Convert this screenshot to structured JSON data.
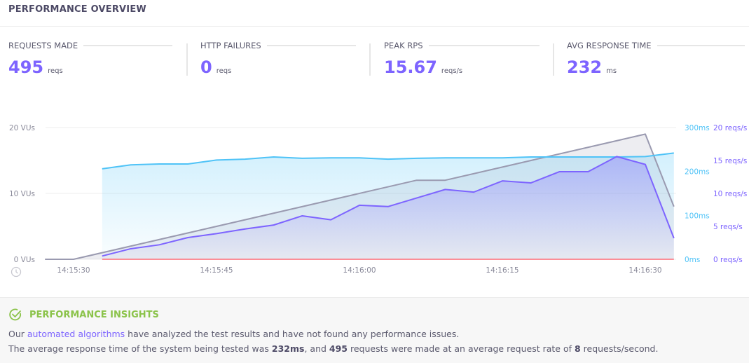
{
  "header": {
    "title": "PERFORMANCE OVERVIEW"
  },
  "stats": [
    {
      "label": "REQUESTS MADE",
      "value": "495",
      "unit": "reqs"
    },
    {
      "label": "HTTP FAILURES",
      "value": "0",
      "unit": "reqs"
    },
    {
      "label": "PEAK RPS",
      "value": "15.67",
      "unit": "reqs/s"
    },
    {
      "label": "AVG RESPONSE TIME",
      "value": "232",
      "unit": "ms"
    }
  ],
  "colors": {
    "vus": "#9a9ab0",
    "response_time": "#4fc3f7",
    "rps": "#7d64ff",
    "failures": "#ff4d5a",
    "accent": "#7d64ff",
    "insight": "#8bc34a"
  },
  "chart_data": {
    "type": "line",
    "x_ticks": [
      "14:15:30",
      "14:15:45",
      "14:16:00",
      "14:16:15",
      "14:16:30"
    ],
    "y_left": {
      "ticks": [
        "0 VUs",
        "10 VUs",
        "20 VUs"
      ],
      "range": [
        0,
        20
      ]
    },
    "y_right_ms": {
      "ticks": [
        "0ms",
        "100ms",
        "200ms",
        "300ms"
      ],
      "range": [
        0,
        300
      ]
    },
    "y_right_rps": {
      "ticks": [
        "0 reqs/s",
        "5 reqs/s",
        "10 reqs/s",
        "15 reqs/s",
        "20 reqs/s"
      ],
      "range": [
        0,
        20
      ]
    },
    "grid": true,
    "series": [
      {
        "key": "vus",
        "axis": "left",
        "x": [
          "14:15:27",
          "14:15:30",
          "14:16:06",
          "14:16:09",
          "14:16:30",
          "14:16:33"
        ],
        "values": [
          0,
          0,
          12,
          12,
          19,
          8
        ]
      },
      {
        "key": "response_time",
        "axis": "ms",
        "x": [
          "14:15:33",
          "14:15:36",
          "14:15:39",
          "14:15:42",
          "14:15:45",
          "14:15:48",
          "14:15:51",
          "14:15:54",
          "14:15:57",
          "14:16:00",
          "14:16:03",
          "14:16:06",
          "14:16:09",
          "14:16:12",
          "14:16:15",
          "14:16:18",
          "14:16:21",
          "14:16:24",
          "14:16:27",
          "14:16:30",
          "14:16:33"
        ],
        "values": [
          206,
          215,
          217,
          217,
          226,
          228,
          233,
          230,
          231,
          231,
          228,
          230,
          231,
          231,
          231,
          233,
          233,
          233,
          233,
          234,
          242
        ]
      },
      {
        "key": "rps",
        "axis": "rps",
        "x": [
          "14:15:33",
          "14:15:36",
          "14:15:39",
          "14:15:42",
          "14:15:45",
          "14:15:48",
          "14:15:51",
          "14:15:54",
          "14:15:57",
          "14:16:00",
          "14:16:03",
          "14:16:06",
          "14:16:09",
          "14:16:12",
          "14:16:15",
          "14:16:18",
          "14:16:21",
          "14:16:24",
          "14:16:27",
          "14:16:30",
          "14:16:33"
        ],
        "values": [
          0.5,
          1.6,
          2.2,
          3.3,
          3.9,
          4.6,
          5.2,
          6.6,
          6.0,
          8.2,
          8.0,
          9.3,
          10.6,
          10.2,
          11.9,
          11.6,
          13.3,
          13.3,
          15.6,
          14.4,
          3.2
        ]
      },
      {
        "key": "failures",
        "axis": "rps",
        "x": [
          "14:15:33",
          "14:16:33"
        ],
        "values": [
          0,
          0
        ]
      }
    ]
  },
  "insights": {
    "title": "PERFORMANCE INSIGHTS",
    "line1_pre": "Our ",
    "line1_link": "automated algorithms",
    "line1_post": " have analyzed the test results and have not found any performance issues.",
    "line2_a": "The average response time of the system being tested was ",
    "line2_b": "232ms",
    "line2_c": ", and ",
    "line2_d": "495",
    "line2_e": " requests were made at an average request rate of ",
    "line2_f": "8",
    "line2_g": " requests/second."
  }
}
